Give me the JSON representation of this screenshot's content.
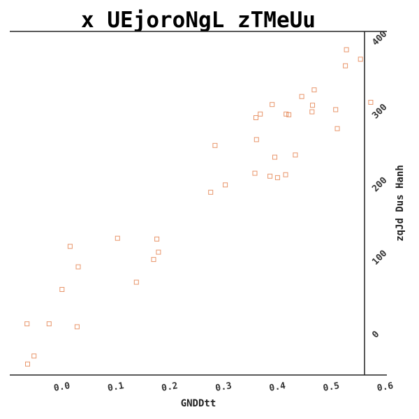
{
  "chart_data": {
    "type": "scatter",
    "title": "x UEjoroNgL zTMeUu",
    "xlabel": "GNDDtt",
    "ylabel": "zqJd Dus Hanh",
    "xlim": [
      -0.095,
      0.605
    ],
    "ylim": [
      -50,
      420
    ],
    "x_ticks": [
      0.0,
      0.1,
      0.2,
      0.3,
      0.4,
      0.5,
      0.6
    ],
    "x_tick_labels": [
      "0.0",
      "0.1",
      "0.2",
      "0.3",
      "0.4",
      "0.5",
      "0.6"
    ],
    "y_ticks": [
      0,
      100,
      200,
      300,
      400
    ],
    "y_tick_labels": [
      "0",
      "100",
      "200",
      "300",
      "400"
    ],
    "y_axis_side": "right",
    "grid": false,
    "marker": "square",
    "color": "#e8956a",
    "series": [
      {
        "x": [
          -0.062,
          -0.05,
          -0.063,
          -0.022,
          0.002,
          0.017,
          0.032,
          0.03,
          0.105,
          0.14,
          0.172,
          0.178,
          0.181,
          0.278,
          0.286,
          0.305,
          0.36,
          0.362,
          0.363,
          0.37,
          0.388,
          0.392,
          0.397,
          0.402,
          0.417,
          0.418,
          0.423,
          0.435,
          0.447,
          0.466,
          0.467,
          0.47,
          0.51,
          0.513,
          0.528,
          0.53,
          0.556,
          0.575
        ],
        "y": [
          -35,
          -24,
          20,
          20,
          67,
          126,
          98,
          16,
          137,
          77,
          108,
          136,
          118,
          200,
          264,
          210,
          226,
          302,
          272,
          307,
          222,
          320,
          248,
          220,
          224,
          307,
          306,
          251,
          331,
          310,
          319,
          340,
          313,
          287,
          373,
          395,
          382,
          323
        ]
      }
    ]
  }
}
